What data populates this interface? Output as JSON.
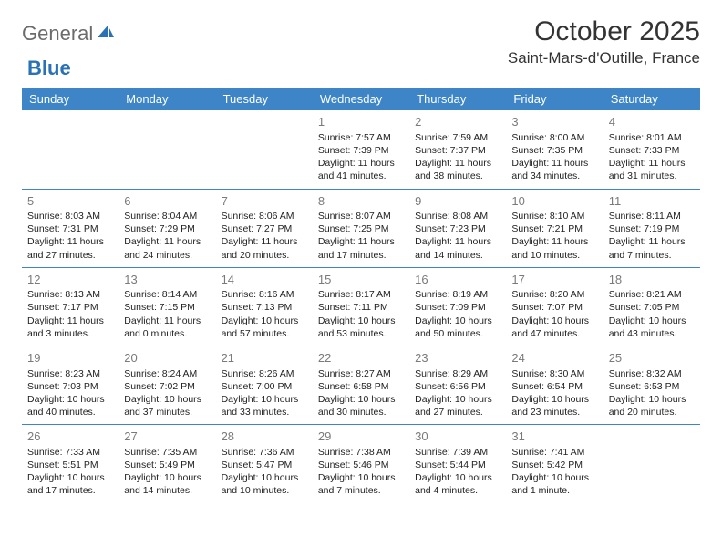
{
  "logo": {
    "word1": "General",
    "word2": "Blue"
  },
  "title": "October 2025",
  "location": "Saint-Mars-d'Outille, France",
  "dayHeaders": [
    "Sunday",
    "Monday",
    "Tuesday",
    "Wednesday",
    "Thursday",
    "Friday",
    "Saturday"
  ],
  "colors": {
    "headerBg": "#3d85c6",
    "headerText": "#ffffff",
    "cellBorder": "#3d85c6",
    "dayNum": "#7a7a7a",
    "bodyText": "#222222",
    "logoGray": "#6b6b6b",
    "logoBlue": "#2a72b5"
  },
  "weeks": [
    [
      null,
      null,
      null,
      {
        "n": "1",
        "sr": "Sunrise: 7:57 AM",
        "ss": "Sunset: 7:39 PM",
        "d1": "Daylight: 11 hours",
        "d2": "and 41 minutes."
      },
      {
        "n": "2",
        "sr": "Sunrise: 7:59 AM",
        "ss": "Sunset: 7:37 PM",
        "d1": "Daylight: 11 hours",
        "d2": "and 38 minutes."
      },
      {
        "n": "3",
        "sr": "Sunrise: 8:00 AM",
        "ss": "Sunset: 7:35 PM",
        "d1": "Daylight: 11 hours",
        "d2": "and 34 minutes."
      },
      {
        "n": "4",
        "sr": "Sunrise: 8:01 AM",
        "ss": "Sunset: 7:33 PM",
        "d1": "Daylight: 11 hours",
        "d2": "and 31 minutes."
      }
    ],
    [
      {
        "n": "5",
        "sr": "Sunrise: 8:03 AM",
        "ss": "Sunset: 7:31 PM",
        "d1": "Daylight: 11 hours",
        "d2": "and 27 minutes."
      },
      {
        "n": "6",
        "sr": "Sunrise: 8:04 AM",
        "ss": "Sunset: 7:29 PM",
        "d1": "Daylight: 11 hours",
        "d2": "and 24 minutes."
      },
      {
        "n": "7",
        "sr": "Sunrise: 8:06 AM",
        "ss": "Sunset: 7:27 PM",
        "d1": "Daylight: 11 hours",
        "d2": "and 20 minutes."
      },
      {
        "n": "8",
        "sr": "Sunrise: 8:07 AM",
        "ss": "Sunset: 7:25 PM",
        "d1": "Daylight: 11 hours",
        "d2": "and 17 minutes."
      },
      {
        "n": "9",
        "sr": "Sunrise: 8:08 AM",
        "ss": "Sunset: 7:23 PM",
        "d1": "Daylight: 11 hours",
        "d2": "and 14 minutes."
      },
      {
        "n": "10",
        "sr": "Sunrise: 8:10 AM",
        "ss": "Sunset: 7:21 PM",
        "d1": "Daylight: 11 hours",
        "d2": "and 10 minutes."
      },
      {
        "n": "11",
        "sr": "Sunrise: 8:11 AM",
        "ss": "Sunset: 7:19 PM",
        "d1": "Daylight: 11 hours",
        "d2": "and 7 minutes."
      }
    ],
    [
      {
        "n": "12",
        "sr": "Sunrise: 8:13 AM",
        "ss": "Sunset: 7:17 PM",
        "d1": "Daylight: 11 hours",
        "d2": "and 3 minutes."
      },
      {
        "n": "13",
        "sr": "Sunrise: 8:14 AM",
        "ss": "Sunset: 7:15 PM",
        "d1": "Daylight: 11 hours",
        "d2": "and 0 minutes."
      },
      {
        "n": "14",
        "sr": "Sunrise: 8:16 AM",
        "ss": "Sunset: 7:13 PM",
        "d1": "Daylight: 10 hours",
        "d2": "and 57 minutes."
      },
      {
        "n": "15",
        "sr": "Sunrise: 8:17 AM",
        "ss": "Sunset: 7:11 PM",
        "d1": "Daylight: 10 hours",
        "d2": "and 53 minutes."
      },
      {
        "n": "16",
        "sr": "Sunrise: 8:19 AM",
        "ss": "Sunset: 7:09 PM",
        "d1": "Daylight: 10 hours",
        "d2": "and 50 minutes."
      },
      {
        "n": "17",
        "sr": "Sunrise: 8:20 AM",
        "ss": "Sunset: 7:07 PM",
        "d1": "Daylight: 10 hours",
        "d2": "and 47 minutes."
      },
      {
        "n": "18",
        "sr": "Sunrise: 8:21 AM",
        "ss": "Sunset: 7:05 PM",
        "d1": "Daylight: 10 hours",
        "d2": "and 43 minutes."
      }
    ],
    [
      {
        "n": "19",
        "sr": "Sunrise: 8:23 AM",
        "ss": "Sunset: 7:03 PM",
        "d1": "Daylight: 10 hours",
        "d2": "and 40 minutes."
      },
      {
        "n": "20",
        "sr": "Sunrise: 8:24 AM",
        "ss": "Sunset: 7:02 PM",
        "d1": "Daylight: 10 hours",
        "d2": "and 37 minutes."
      },
      {
        "n": "21",
        "sr": "Sunrise: 8:26 AM",
        "ss": "Sunset: 7:00 PM",
        "d1": "Daylight: 10 hours",
        "d2": "and 33 minutes."
      },
      {
        "n": "22",
        "sr": "Sunrise: 8:27 AM",
        "ss": "Sunset: 6:58 PM",
        "d1": "Daylight: 10 hours",
        "d2": "and 30 minutes."
      },
      {
        "n": "23",
        "sr": "Sunrise: 8:29 AM",
        "ss": "Sunset: 6:56 PM",
        "d1": "Daylight: 10 hours",
        "d2": "and 27 minutes."
      },
      {
        "n": "24",
        "sr": "Sunrise: 8:30 AM",
        "ss": "Sunset: 6:54 PM",
        "d1": "Daylight: 10 hours",
        "d2": "and 23 minutes."
      },
      {
        "n": "25",
        "sr": "Sunrise: 8:32 AM",
        "ss": "Sunset: 6:53 PM",
        "d1": "Daylight: 10 hours",
        "d2": "and 20 minutes."
      }
    ],
    [
      {
        "n": "26",
        "sr": "Sunrise: 7:33 AM",
        "ss": "Sunset: 5:51 PM",
        "d1": "Daylight: 10 hours",
        "d2": "and 17 minutes."
      },
      {
        "n": "27",
        "sr": "Sunrise: 7:35 AM",
        "ss": "Sunset: 5:49 PM",
        "d1": "Daylight: 10 hours",
        "d2": "and 14 minutes."
      },
      {
        "n": "28",
        "sr": "Sunrise: 7:36 AM",
        "ss": "Sunset: 5:47 PM",
        "d1": "Daylight: 10 hours",
        "d2": "and 10 minutes."
      },
      {
        "n": "29",
        "sr": "Sunrise: 7:38 AM",
        "ss": "Sunset: 5:46 PM",
        "d1": "Daylight: 10 hours",
        "d2": "and 7 minutes."
      },
      {
        "n": "30",
        "sr": "Sunrise: 7:39 AM",
        "ss": "Sunset: 5:44 PM",
        "d1": "Daylight: 10 hours",
        "d2": "and 4 minutes."
      },
      {
        "n": "31",
        "sr": "Sunrise: 7:41 AM",
        "ss": "Sunset: 5:42 PM",
        "d1": "Daylight: 10 hours",
        "d2": "and 1 minute."
      },
      null
    ]
  ]
}
